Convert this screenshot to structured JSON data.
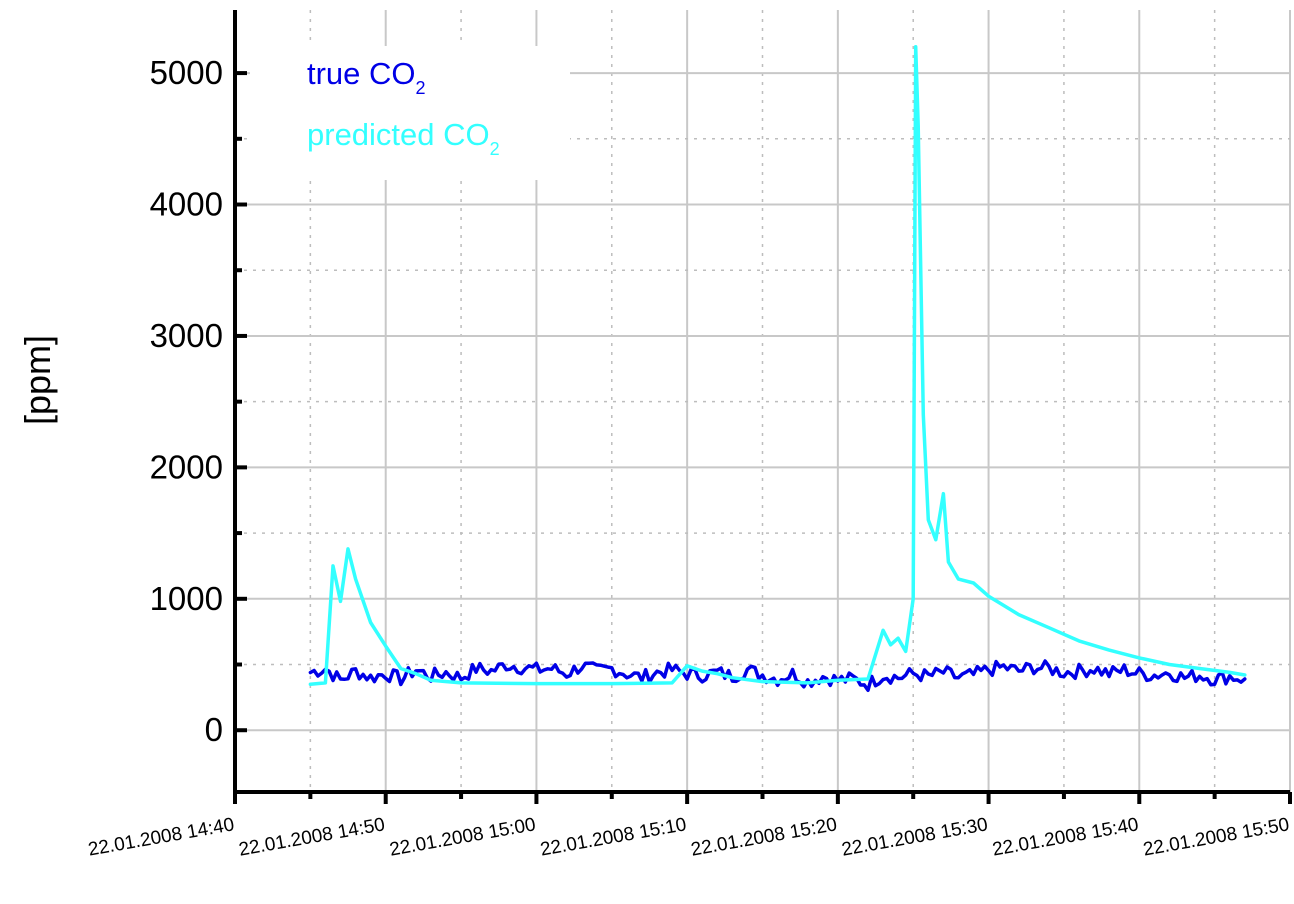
{
  "chart_data": {
    "type": "line",
    "title": "",
    "xlabel": "",
    "ylabel": "[ppm]",
    "ylim": [
      -470,
      5480
    ],
    "xlim": [
      "22.01.2008 14:40",
      "22.01.2008 15:50"
    ],
    "x_ticks": [
      "22.01.2008 14:40",
      "22.01.2008 14:50",
      "22.01.2008 15:00",
      "22.01.2008 15:10",
      "22.01.2008 15:20",
      "22.01.2008 15:30",
      "22.01.2008 15:40",
      "22.01.2008 15:50"
    ],
    "y_ticks": [
      "0",
      "1000",
      "2000",
      "3000",
      "4000",
      "5000"
    ],
    "y_tick_values": [
      0,
      1000,
      2000,
      3000,
      4000,
      5000
    ],
    "grid": true,
    "legend_position": "top-left",
    "series": [
      {
        "name": "true CO",
        "name_subscript": "2",
        "color": "#0000e6",
        "x": [
          "22.01.2008 14:45",
          "22.01.2008 14:46",
          "22.01.2008 14:47",
          "22.01.2008 14:48",
          "22.01.2008 14:49",
          "22.01.2008 14:50",
          "22.01.2008 14:51",
          "22.01.2008 14:52",
          "22.01.2008 14:53",
          "22.01.2008 14:54",
          "22.01.2008 14:55",
          "22.01.2008 14:56",
          "22.01.2008 14:57",
          "22.01.2008 14:58",
          "22.01.2008 14:59",
          "22.01.2008 15:00",
          "22.01.2008 15:01",
          "22.01.2008 15:02",
          "22.01.2008 15:03",
          "22.01.2008 15:04",
          "22.01.2008 15:05",
          "22.01.2008 15:06",
          "22.01.2008 15:07",
          "22.01.2008 15:08",
          "22.01.2008 15:09",
          "22.01.2008 15:10",
          "22.01.2008 15:11",
          "22.01.2008 15:12",
          "22.01.2008 15:13",
          "22.01.2008 15:14",
          "22.01.2008 15:15",
          "22.01.2008 15:16",
          "22.01.2008 15:17",
          "22.01.2008 15:18",
          "22.01.2008 15:19",
          "22.01.2008 15:20",
          "22.01.2008 15:21",
          "22.01.2008 15:22",
          "22.01.2008 15:23",
          "22.01.2008 15:24",
          "22.01.2008 15:25",
          "22.01.2008 15:26",
          "22.01.2008 15:27",
          "22.01.2008 15:28",
          "22.01.2008 15:29",
          "22.01.2008 15:30",
          "22.01.2008 15:31",
          "22.01.2008 15:32",
          "22.01.2008 15:33",
          "22.01.2008 15:34",
          "22.01.2008 15:35",
          "22.01.2008 15:36",
          "22.01.2008 15:37",
          "22.01.2008 15:38",
          "22.01.2008 15:39",
          "22.01.2008 15:40",
          "22.01.2008 15:41",
          "22.01.2008 15:42",
          "22.01.2008 15:43",
          "22.01.2008 15:44",
          "22.01.2008 15:45",
          "22.01.2008 15:46",
          "22.01.2008 15:47"
        ],
        "values": [
          440,
          470,
          380,
          450,
          400,
          430,
          390,
          460,
          410,
          440,
          400,
          470,
          450,
          500,
          480,
          460,
          470,
          430,
          490,
          450,
          470,
          430,
          400,
          440,
          460,
          430,
          420,
          440,
          410,
          460,
          420,
          390,
          430,
          370,
          410,
          380,
          390,
          350,
          420,
          400,
          430,
          410,
          440,
          400,
          420,
          460,
          480,
          450,
          480,
          470,
          440,
          450,
          470,
          430,
          460,
          430,
          420,
          440,
          400,
          420,
          390,
          410,
          390
        ]
      },
      {
        "name": "predicted CO",
        "name_subscript": "2",
        "color": "#33ffff",
        "x": [
          "22.01.2008 14:45",
          "22.01.2008 14:46",
          "22.01.2008 14:46:30",
          "22.01.2008 14:47",
          "22.01.2008 14:47:30",
          "22.01.2008 14:48",
          "22.01.2008 14:49",
          "22.01.2008 14:50",
          "22.01.2008 14:51",
          "22.01.2008 14:52",
          "22.01.2008 14:53",
          "22.01.2008 14:55",
          "22.01.2008 15:00",
          "22.01.2008 15:05",
          "22.01.2008 15:09",
          "22.01.2008 15:10",
          "22.01.2008 15:11",
          "22.01.2008 15:12",
          "22.01.2008 15:13",
          "22.01.2008 15:15",
          "22.01.2008 15:18",
          "22.01.2008 15:20",
          "22.01.2008 15:22",
          "22.01.2008 15:23",
          "22.01.2008 15:23:30",
          "22.01.2008 15:24",
          "22.01.2008 15:24:30",
          "22.01.2008 15:25",
          "22.01.2008 15:25:10",
          "22.01.2008 15:25:20",
          "22.01.2008 15:25:40",
          "22.01.2008 15:26",
          "22.01.2008 15:26:30",
          "22.01.2008 15:27",
          "22.01.2008 15:27:20",
          "22.01.2008 15:28",
          "22.01.2008 15:29",
          "22.01.2008 15:30",
          "22.01.2008 15:31",
          "22.01.2008 15:32",
          "22.01.2008 15:34",
          "22.01.2008 15:36",
          "22.01.2008 15:38",
          "22.01.2008 15:40",
          "22.01.2008 15:42",
          "22.01.2008 15:44",
          "22.01.2008 15:46",
          "22.01.2008 15:47"
        ],
        "values": [
          350,
          360,
          1250,
          980,
          1380,
          1150,
          820,
          640,
          470,
          430,
          380,
          360,
          355,
          355,
          360,
          490,
          450,
          430,
          400,
          370,
          360,
          380,
          390,
          760,
          650,
          700,
          600,
          1000,
          5200,
          4600,
          2400,
          1600,
          1450,
          1800,
          1280,
          1150,
          1120,
          1020,
          950,
          880,
          780,
          680,
          610,
          550,
          500,
          470,
          440,
          420
        ]
      }
    ]
  }
}
